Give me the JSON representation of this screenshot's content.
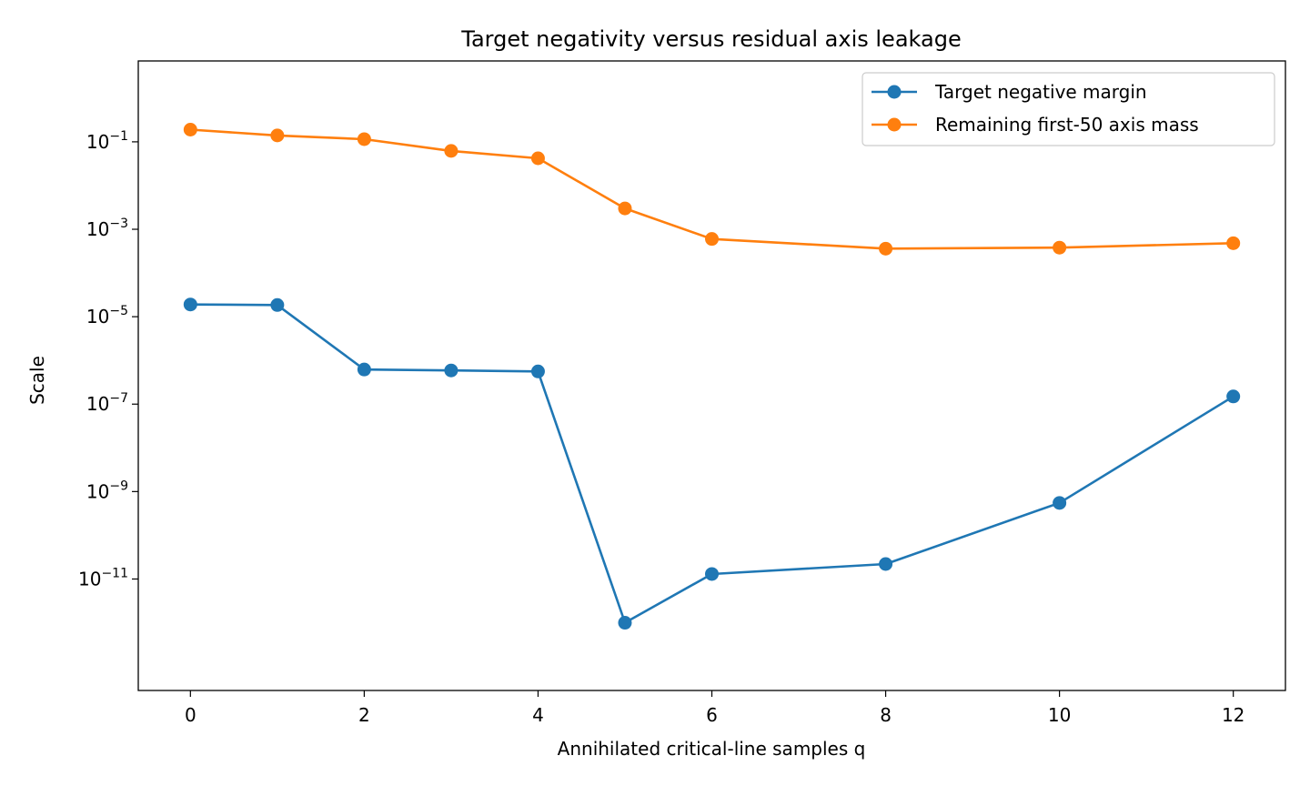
{
  "chart_data": {
    "type": "line",
    "title": "Target negativity versus residual axis leakage",
    "xlabel": "Annihilated critical-line samples q",
    "ylabel": "Scale",
    "yscale": "log",
    "xlim": [
      -0.6,
      12.6
    ],
    "ylim_log10": [
      -13.55,
      0.85
    ],
    "x_ticks": [
      0,
      2,
      4,
      6,
      8,
      10,
      12
    ],
    "y_ticks_exponents": [
      -11,
      -9,
      -7,
      -5,
      -3,
      -1
    ],
    "legend_position": "top-right",
    "grid": false,
    "x": [
      0,
      1,
      2,
      3,
      4,
      5,
      6,
      8,
      10,
      12
    ],
    "series": [
      {
        "name": "Target negative margin",
        "color": "#1f77b4",
        "values": [
          1.9e-05,
          1.85e-05,
          6.2e-07,
          5.9e-07,
          5.6e-07,
          1e-12,
          1.3e-11,
          2.2e-11,
          5.5e-10,
          1.5e-07
        ]
      },
      {
        "name": "Remaining first-50 axis mass",
        "color": "#ff7f0e",
        "values": [
          0.19,
          0.14,
          0.115,
          0.062,
          0.042,
          0.003,
          0.0006,
          0.00036,
          0.00038,
          0.00048
        ]
      }
    ]
  }
}
